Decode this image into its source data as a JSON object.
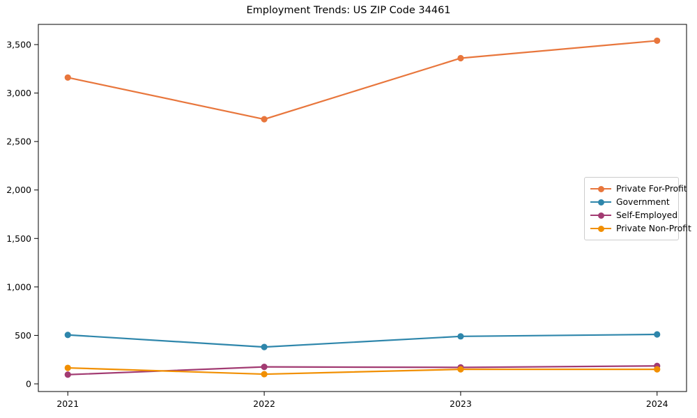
{
  "chart_data": {
    "type": "line",
    "title": "Employment Trends: US ZIP Code 34461",
    "x": [
      2021,
      2022,
      2023,
      2024
    ],
    "x_tick_labels": [
      "2021",
      "2022",
      "2023",
      "2024"
    ],
    "series": [
      {
        "name": "Private For-Profit",
        "color": "#E8763C",
        "values": [
          3160,
          2730,
          3360,
          3540
        ]
      },
      {
        "name": "Government",
        "color": "#2E86AB",
        "values": [
          505,
          380,
          490,
          510
        ]
      },
      {
        "name": "Self-Employed",
        "color": "#A23B72",
        "values": [
          95,
          175,
          170,
          185
        ]
      },
      {
        "name": "Private Non-Profit",
        "color": "#F18F01",
        "values": [
          165,
          100,
          150,
          150
        ]
      }
    ],
    "ylim": [
      0,
      3500
    ],
    "ytick_step": 500,
    "y_tick_labels": [
      "0",
      "500",
      "1,000",
      "1,500",
      "2,000",
      "2,500",
      "3,000",
      "3,500"
    ],
    "xlabel": "",
    "ylabel": "",
    "grid": false,
    "legend_position": "center-right",
    "axis_color": "#000000",
    "text_color": "#000000",
    "background_color": "#ffffff"
  }
}
